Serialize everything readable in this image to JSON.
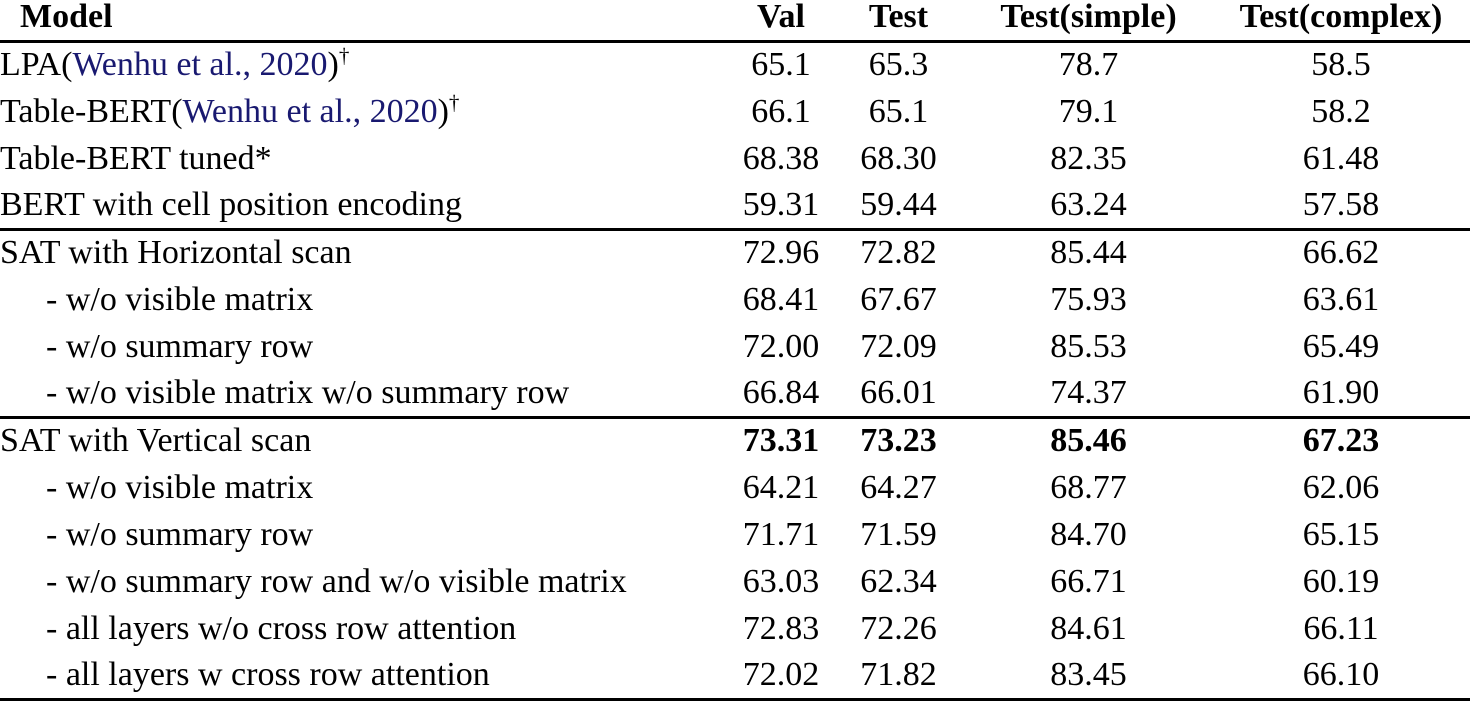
{
  "page": {
    "background": "#ffffff",
    "text_color": "#000000",
    "citation_color": "#191970"
  },
  "table": {
    "header": {
      "model": "Model",
      "val": "Val",
      "test": "Test",
      "test_simple": "Test(simple)",
      "test_complex": "Test(complex)"
    },
    "sections": [
      {
        "rows": [
          {
            "model": [
              {
                "t": "LPA("
              },
              {
                "t": "Wenhu et al., 2020",
                "style": "citation"
              },
              {
                "t": ")"
              },
              {
                "t": "†",
                "style": "sup"
              }
            ],
            "indent": false,
            "values": [
              "65.1",
              "65.3",
              "78.7",
              "58.5"
            ],
            "bold_values": false
          },
          {
            "model": [
              {
                "t": "Table-BERT("
              },
              {
                "t": "Wenhu et al., 2020",
                "style": "citation"
              },
              {
                "t": ")"
              },
              {
                "t": "†",
                "style": "sup"
              }
            ],
            "indent": false,
            "values": [
              "66.1",
              "65.1",
              "79.1",
              "58.2"
            ],
            "bold_values": false
          },
          {
            "model": [
              {
                "t": "Table-BERT tuned*"
              }
            ],
            "indent": false,
            "values": [
              "68.38",
              "68.30",
              "82.35",
              "61.48"
            ],
            "bold_values": false
          },
          {
            "model": [
              {
                "t": "BERT with cell position encoding"
              }
            ],
            "indent": false,
            "values": [
              "59.31",
              "59.44",
              "63.24",
              "57.58"
            ],
            "bold_values": false
          }
        ]
      },
      {
        "rows": [
          {
            "model": [
              {
                "t": "SAT with Horizontal scan"
              }
            ],
            "indent": false,
            "values": [
              "72.96",
              "72.82",
              "85.44",
              "66.62"
            ],
            "bold_values": false
          },
          {
            "model": [
              {
                "t": "- w/o visible matrix"
              }
            ],
            "indent": true,
            "values": [
              "68.41",
              "67.67",
              "75.93",
              "63.61"
            ],
            "bold_values": false
          },
          {
            "model": [
              {
                "t": "- w/o summary row"
              }
            ],
            "indent": true,
            "values": [
              "72.00",
              "72.09",
              "85.53",
              "65.49"
            ],
            "bold_values": false
          },
          {
            "model": [
              {
                "t": "- w/o visible matrix w/o summary row"
              }
            ],
            "indent": true,
            "values": [
              "66.84",
              "66.01",
              "74.37",
              "61.90"
            ],
            "bold_values": false
          }
        ]
      },
      {
        "rows": [
          {
            "model": [
              {
                "t": "SAT with Vertical scan"
              }
            ],
            "indent": false,
            "values": [
              "73.31",
              "73.23",
              "85.46",
              "67.23"
            ],
            "bold_values": true
          },
          {
            "model": [
              {
                "t": "- w/o visible matrix"
              }
            ],
            "indent": true,
            "values": [
              "64.21",
              "64.27",
              "68.77",
              "62.06"
            ],
            "bold_values": false
          },
          {
            "model": [
              {
                "t": "- w/o summary row"
              }
            ],
            "indent": true,
            "values": [
              "71.71",
              "71.59",
              "84.70",
              "65.15"
            ],
            "bold_values": false
          },
          {
            "model": [
              {
                "t": "- w/o summary row and w/o visible matrix"
              }
            ],
            "indent": true,
            "values": [
              "63.03",
              "62.34",
              "66.71",
              "60.19"
            ],
            "bold_values": false
          },
          {
            "model": [
              {
                "t": "- all layers w/o cross row attention"
              }
            ],
            "indent": true,
            "values": [
              "72.83",
              "72.26",
              "84.61",
              "66.11"
            ],
            "bold_values": false
          },
          {
            "model": [
              {
                "t": "- all layers w cross row attention"
              }
            ],
            "indent": true,
            "values": [
              "72.02",
              "71.82",
              "83.45",
              "66.10"
            ],
            "bold_values": false
          }
        ]
      }
    ]
  }
}
